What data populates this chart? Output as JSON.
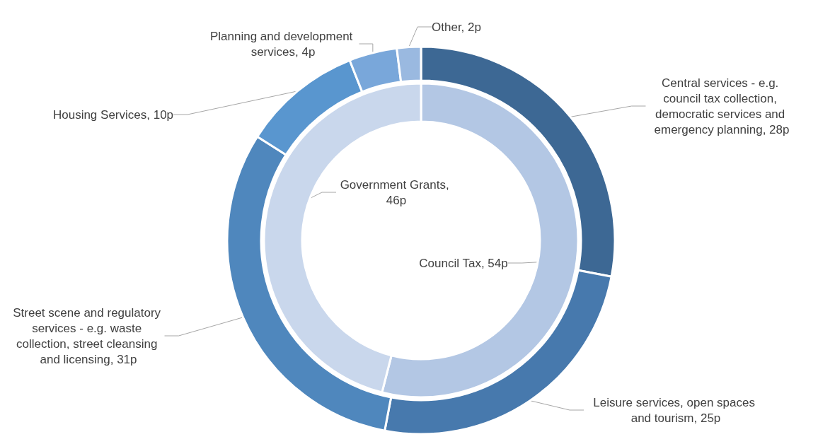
{
  "chart_data": [
    {
      "type": "donut",
      "categories": [
        "Council Tax, 54p",
        "Government Grants, 46p"
      ],
      "values": [
        54,
        46
      ],
      "colors": [
        "#b3c7e4",
        "#c9d7ec"
      ],
      "legend": false
    },
    {
      "type": "donut",
      "categories": [
        "Central services - e.g. council tax collection, democratic services and emergency planning, 28p",
        "Leisure services, open spaces and tourism, 25p",
        "Street scene and regulatory services - e.g. waste collection, street cleansing and licensing, 31p",
        "Housing Services, 10p",
        "Planning and development services, 4p",
        "Other, 2p"
      ],
      "values": [
        28,
        25,
        31,
        10,
        4,
        2
      ],
      "colors": [
        "#3d6894",
        "#4779ad",
        "#4f87bd",
        "#5996cf",
        "#79a7da",
        "#9ab9e0"
      ],
      "legend": false
    }
  ]
}
